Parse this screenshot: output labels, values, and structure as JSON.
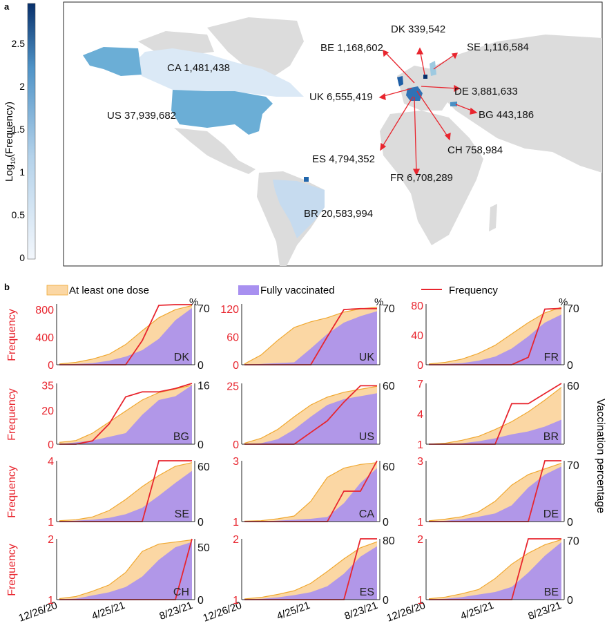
{
  "panel_a": {
    "label": "a",
    "colorbar": {
      "title_prefix": "Log",
      "title_sub": "10",
      "title_suffix": "(Frequency)",
      "ticks": [
        "0",
        "0.5",
        "1",
        "1.5",
        "2",
        "2.5"
      ],
      "color_low": "#eef4fb",
      "color_high": "#08306b"
    },
    "countries": [
      {
        "code": "CA",
        "value": "1,481,438",
        "log": 0.97
      },
      {
        "code": "US",
        "value": "37,939,682",
        "log": 1.5
      },
      {
        "code": "BR",
        "value": "20,583,994",
        "log": 0.9
      },
      {
        "code": "DK",
        "value": "339,542",
        "log": 2.9
      },
      {
        "code": "BE",
        "value": "1,168,602",
        "log": 0.3
      },
      {
        "code": "SE",
        "value": "1,116,584",
        "log": 0.6
      },
      {
        "code": "UK",
        "value": "6,555,419",
        "log": 2.1
      },
      {
        "code": "DE",
        "value": "3,881,633",
        "log": 0.5
      },
      {
        "code": "BG",
        "value": "443,186",
        "log": 1.55
      },
      {
        "code": "CH",
        "value": "758,984",
        "log": 0.3
      },
      {
        "code": "ES",
        "value": "4,794,352",
        "log": 0.3
      },
      {
        "code": "FR",
        "value": "6,708,289",
        "log": 2.0
      }
    ]
  },
  "panel_b": {
    "label": "b",
    "legend": {
      "at_least_one": "At least one dose",
      "fully": "Fully vaccinated",
      "frequency": "Frequency"
    },
    "left_axis_label": "Frequency",
    "right_axis_label": "Vaccination percentage",
    "percent_symbol": "%",
    "x_ticks": [
      "12/26/20",
      "4/25/21",
      "8/23/21"
    ],
    "colors": {
      "one_dose_fill": "#fbd7a4",
      "one_dose_line": "#f0a830",
      "fully_fill": "#a890f0",
      "frequency_line": "#e8252e"
    }
  },
  "chart_data": [
    {
      "type": "area",
      "country": "DK",
      "x": [
        "12/26/20",
        "1/25/21",
        "2/24/21",
        "3/26/21",
        "4/25/21",
        "5/25/21",
        "6/24/21",
        "7/24/21",
        "8/23/21"
      ],
      "left_ticks": [
        "0",
        "400",
        "800"
      ],
      "right_ticks": [
        "0",
        "70"
      ],
      "ylim_left": [
        0,
        880
      ],
      "ylim_right": [
        0,
        75
      ],
      "frequency": [
        0,
        0,
        0,
        0,
        0,
        350,
        860,
        870,
        870
      ],
      "at_least_one_dose": [
        1,
        3,
        7,
        13,
        25,
        42,
        58,
        68,
        73
      ],
      "fully_vaccinated": [
        0,
        1,
        2,
        5,
        10,
        18,
        32,
        55,
        70
      ]
    },
    {
      "type": "area",
      "country": "UK",
      "x": [
        "12/26/20",
        "1/25/21",
        "2/24/21",
        "3/26/21",
        "4/25/21",
        "5/25/21",
        "6/24/21",
        "7/24/21",
        "8/23/21"
      ],
      "left_ticks": [
        "0",
        "60",
        "120"
      ],
      "right_ticks": [
        "70"
      ],
      "ylim_left": [
        0,
        130
      ],
      "ylim_right": [
        0,
        75
      ],
      "frequency": [
        0,
        0,
        0,
        0,
        0,
        60,
        118,
        120,
        120
      ],
      "at_least_one_dose": [
        1,
        12,
        30,
        46,
        53,
        58,
        65,
        69,
        71
      ],
      "fully_vaccinated": [
        0,
        1,
        2,
        3,
        20,
        38,
        52,
        60,
        66
      ]
    },
    {
      "type": "area",
      "country": "FR",
      "x": [
        "12/26/20",
        "1/25/21",
        "2/24/21",
        "3/26/21",
        "4/25/21",
        "5/25/21",
        "6/24/21",
        "7/24/21",
        "8/23/21"
      ],
      "left_ticks": [
        "0",
        "40",
        "80"
      ],
      "right_ticks": [
        "0",
        "70"
      ],
      "ylim_left": [
        0,
        82
      ],
      "ylim_right": [
        0,
        75
      ],
      "frequency": [
        0,
        0,
        0,
        0,
        0,
        0,
        10,
        75,
        76
      ],
      "at_least_one_dose": [
        1,
        3,
        7,
        14,
        24,
        38,
        52,
        64,
        71
      ],
      "fully_vaccinated": [
        0,
        1,
        2,
        5,
        10,
        20,
        35,
        52,
        62
      ]
    },
    {
      "type": "area",
      "country": "BG",
      "x": [
        "12/26/20",
        "1/25/21",
        "2/24/21",
        "3/26/21",
        "4/25/21",
        "5/25/21",
        "6/24/21",
        "7/24/21",
        "8/23/21"
      ],
      "left_ticks": [
        "0",
        "20",
        "35"
      ],
      "right_ticks": [
        "0",
        "16"
      ],
      "ylim_left": [
        0,
        36
      ],
      "ylim_right": [
        0,
        16.5
      ],
      "frequency": [
        0,
        0,
        2,
        12,
        28,
        31,
        31,
        33,
        36
      ],
      "at_least_one_dose": [
        0.5,
        1,
        3,
        6,
        9,
        12,
        14,
        15,
        16
      ],
      "fully_vaccinated": [
        0,
        0.5,
        1,
        2,
        3,
        8,
        12,
        13,
        16
      ]
    },
    {
      "type": "area",
      "country": "US",
      "x": [
        "12/26/20",
        "1/25/21",
        "2/24/21",
        "3/26/21",
        "4/25/21",
        "5/25/21",
        "6/24/21",
        "7/24/21",
        "8/23/21"
      ],
      "left_ticks": [
        "0",
        "25"
      ],
      "right_ticks": [
        "60"
      ],
      "ylim_left": [
        0,
        26
      ],
      "ylim_right": [
        0,
        62
      ],
      "frequency": [
        0,
        0,
        0,
        0,
        5,
        10,
        18,
        25,
        25
      ],
      "at_least_one_dose": [
        1,
        6,
        15,
        28,
        40,
        48,
        53,
        56,
        59
      ],
      "fully_vaccinated": [
        0,
        1,
        5,
        15,
        28,
        40,
        46,
        49,
        52
      ]
    },
    {
      "type": "area",
      "country": "BR",
      "x": [
        "12/26/20",
        "1/25/21",
        "2/24/21",
        "3/26/21",
        "4/25/21",
        "5/25/21",
        "6/24/21",
        "7/24/21",
        "8/23/21"
      ],
      "left_ticks": [
        "1",
        "4",
        "7"
      ],
      "right_ticks": [
        "60"
      ],
      "ylim_left": [
        1,
        7
      ],
      "ylim_right": [
        0,
        62
      ],
      "frequency": [
        1,
        1,
        1,
        1,
        1,
        5,
        5,
        6,
        7
      ],
      "at_least_one_dose": [
        0,
        1,
        4,
        8,
        15,
        23,
        33,
        45,
        58
      ],
      "fully_vaccinated": [
        0,
        0,
        1,
        3,
        6,
        10,
        13,
        18,
        25
      ]
    },
    {
      "type": "area",
      "country": "SE",
      "x": [
        "12/26/20",
        "1/25/21",
        "2/24/21",
        "3/26/21",
        "4/25/21",
        "5/25/21",
        "6/24/21",
        "7/24/21",
        "8/23/21"
      ],
      "left_ticks": [
        "1",
        "4"
      ],
      "right_ticks": [
        "0",
        "60"
      ],
      "ylim_left": [
        1,
        4
      ],
      "ylim_right": [
        0,
        66
      ],
      "frequency": [
        1,
        1,
        1,
        1,
        1,
        1,
        4,
        4,
        4
      ],
      "at_least_one_dose": [
        1,
        2,
        5,
        12,
        24,
        38,
        50,
        60,
        64
      ],
      "fully_vaccinated": [
        0,
        1,
        2,
        4,
        8,
        15,
        28,
        42,
        55
      ]
    },
    {
      "type": "area",
      "country": "CA",
      "x": [
        "12/26/20",
        "1/25/21",
        "2/24/21",
        "3/26/21",
        "4/25/21",
        "5/25/21",
        "6/24/21",
        "7/24/21",
        "8/23/21"
      ],
      "left_ticks": [
        "1",
        "3"
      ],
      "right_ticks": [
        "0",
        "60"
      ],
      "ylim_left": [
        1,
        3
      ],
      "ylim_right": [
        0,
        66
      ],
      "frequency": [
        1,
        1,
        1,
        1,
        1,
        1,
        2,
        2,
        3
      ],
      "at_least_one_dose": [
        0.5,
        1,
        3,
        6,
        22,
        48,
        58,
        62,
        64
      ],
      "fully_vaccinated": [
        0,
        0,
        1,
        2,
        3,
        5,
        20,
        42,
        58
      ]
    },
    {
      "type": "area",
      "country": "DE",
      "x": [
        "12/26/20",
        "1/25/21",
        "2/24/21",
        "3/26/21",
        "4/25/21",
        "5/25/21",
        "6/24/21",
        "7/24/21",
        "8/23/21"
      ],
      "left_ticks": [
        "1",
        "3"
      ],
      "right_ticks": [
        "0",
        "70"
      ],
      "ylim_left": [
        1,
        3
      ],
      "ylim_right": [
        0,
        75
      ],
      "frequency": [
        1,
        1,
        1,
        1,
        1,
        1,
        1,
        3,
        3
      ],
      "at_least_one_dose": [
        1,
        3,
        6,
        12,
        25,
        45,
        58,
        65,
        72
      ],
      "fully_vaccinated": [
        0,
        1,
        3,
        6,
        10,
        20,
        42,
        58,
        68
      ]
    },
    {
      "type": "area",
      "country": "CH",
      "x": [
        "12/26/20",
        "1/25/21",
        "2/24/21",
        "3/26/21",
        "4/25/21",
        "5/25/21",
        "6/24/21",
        "7/24/21",
        "8/23/21"
      ],
      "left_ticks": [
        "1",
        "2"
      ],
      "right_ticks": [
        "0",
        "50"
      ],
      "ylim_left": [
        1,
        2
      ],
      "ylim_right": [
        0,
        58
      ],
      "frequency": [
        1,
        1,
        1,
        1,
        1,
        1,
        1,
        1,
        2
      ],
      "at_least_one_dose": [
        1,
        3,
        8,
        14,
        26,
        46,
        53,
        55,
        57
      ],
      "fully_vaccinated": [
        0,
        1,
        4,
        7,
        12,
        22,
        38,
        50,
        55
      ]
    },
    {
      "type": "area",
      "country": "ES",
      "x": [
        "12/26/20",
        "1/25/21",
        "2/24/21",
        "3/26/21",
        "4/25/21",
        "5/25/21",
        "6/24/21",
        "7/24/21",
        "8/23/21"
      ],
      "left_ticks": [
        "1",
        "2"
      ],
      "right_ticks": [
        "0",
        "80"
      ],
      "ylim_left": [
        1,
        2
      ],
      "ylim_right": [
        0,
        82
      ],
      "frequency": [
        1,
        1,
        1,
        1,
        1,
        1,
        1,
        2,
        2
      ],
      "at_least_one_dose": [
        1,
        3,
        7,
        12,
        22,
        38,
        55,
        70,
        78
      ],
      "fully_vaccinated": [
        0,
        1,
        3,
        6,
        10,
        18,
        35,
        58,
        72
      ]
    },
    {
      "type": "area",
      "country": "BE",
      "x": [
        "12/26/20",
        "1/25/21",
        "2/24/21",
        "3/26/21",
        "4/25/21",
        "5/25/21",
        "6/24/21",
        "7/24/21",
        "8/23/21"
      ],
      "left_ticks": [
        "1",
        "2"
      ],
      "right_ticks": [
        "0",
        "70"
      ],
      "ylim_left": [
        1,
        2
      ],
      "ylim_right": [
        0,
        72
      ],
      "frequency": [
        1,
        1,
        1,
        1,
        1,
        1,
        2,
        2,
        2
      ],
      "at_least_one_dose": [
        1,
        3,
        7,
        12,
        25,
        42,
        55,
        65,
        71
      ],
      "fully_vaccinated": [
        0,
        1,
        3,
        6,
        9,
        15,
        32,
        52,
        68
      ]
    }
  ]
}
